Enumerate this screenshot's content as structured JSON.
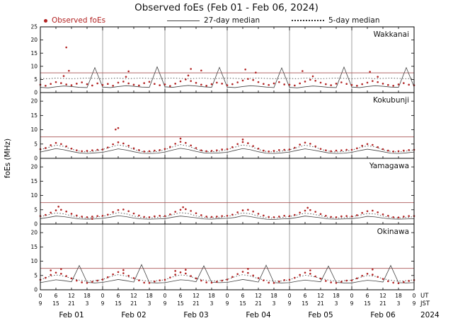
{
  "title": "Observed foEs (Feb 01 - Feb 06, 2024)",
  "ylabel": "foEs (MHz)",
  "colors": {
    "observed": "#b22222",
    "median27": "#444444",
    "median5": "#333333",
    "critical": "#aa5555",
    "grid": "#888888"
  },
  "legend": [
    {
      "label": "Observed foEs",
      "marker": "dot",
      "color": "#b22222"
    },
    {
      "label": "27-day median",
      "marker": "solid-line",
      "color": "#444444"
    },
    {
      "label": "5-day median",
      "marker": "dotted-line",
      "color": "#333333"
    }
  ],
  "x_axis": {
    "total_hours": 144,
    "tick_step_hours": 6,
    "ut_label": "UT",
    "jst_label": "JST",
    "year": "2024",
    "ut_ticks": [
      "0",
      "6",
      "12",
      "18",
      "0",
      "6",
      "12",
      "18",
      "0",
      "6",
      "12",
      "18",
      "0",
      "6",
      "12",
      "18",
      "0",
      "6",
      "12",
      "18",
      "0",
      "6",
      "12",
      "18",
      "0"
    ],
    "jst_ticks": [
      "9",
      "15",
      "21",
      "3",
      "9",
      "15",
      "21",
      "3",
      "9",
      "15",
      "21",
      "3",
      "9",
      "15",
      "21",
      "3",
      "9",
      "15",
      "21",
      "3",
      "9",
      "15",
      "21",
      "3",
      "9"
    ],
    "days": [
      "Feb 01",
      "Feb 02",
      "Feb 03",
      "Feb 04",
      "Feb 05",
      "Feb 06"
    ]
  },
  "chart_data": [
    {
      "station": "Wakkanai",
      "type": "scatter",
      "ylim": [
        0,
        25
      ],
      "yticks": [
        0,
        5,
        10,
        15,
        20,
        25
      ],
      "critical_line": 7.5,
      "observed": {
        "dt_hours": 2,
        "values": [
          3.0,
          2.6,
          3.3,
          4.0,
          3.6,
          3.1,
          2.8,
          3.4,
          3.9,
          3.2,
          2.7,
          3.5,
          2.9,
          3.3,
          2.6,
          3.8,
          4.2,
          3.5,
          3.0,
          2.7,
          3.6,
          4.1,
          3.3,
          2.8,
          3.1,
          2.5,
          3.4,
          4.3,
          5.0,
          4.4,
          3.7,
          3.0,
          2.6,
          3.2,
          3.8,
          3.4,
          2.8,
          3.2,
          3.9,
          4.6,
          5.2,
          4.8,
          4.0,
          3.3,
          2.9,
          3.5,
          4.0,
          3.1,
          3.0,
          2.7,
          3.5,
          4.2,
          4.9,
          4.5,
          3.8,
          3.2,
          2.8,
          3.4,
          3.9,
          3.3,
          2.9,
          2.6,
          3.2,
          3.8,
          4.4,
          4.0,
          3.4,
          2.9,
          2.6,
          3.1,
          3.6,
          3.0,
          2.8
        ]
      },
      "observed_extra": [
        [
          10,
          17.2
        ],
        [
          11,
          8.3
        ],
        [
          9,
          6.3
        ],
        [
          34,
          8.1
        ],
        [
          33,
          6.0
        ],
        [
          58,
          9.0
        ],
        [
          62,
          8.4
        ],
        [
          57,
          6.5
        ],
        [
          79,
          8.8
        ],
        [
          83,
          7.6
        ],
        [
          101,
          8.2
        ],
        [
          105,
          6.2
        ],
        [
          127,
          7.9
        ],
        [
          130,
          6.0
        ]
      ],
      "median27": {
        "dt_hours": 3,
        "values": [
          2.0,
          1.8,
          2.2,
          2.5,
          2.3,
          2.0,
          1.9,
          9.5,
          2.1,
          1.9,
          2.3,
          2.6,
          2.4,
          2.1,
          2.0,
          9.8,
          2.2,
          2.0,
          2.4,
          2.7,
          2.5,
          2.2,
          2.0,
          9.6,
          2.1,
          1.9,
          2.3,
          2.6,
          2.4,
          2.1,
          1.9,
          9.4,
          2.0,
          1.8,
          2.2,
          2.5,
          2.3,
          2.0,
          1.9,
          9.7,
          2.1,
          1.9,
          2.3,
          2.6,
          2.4,
          2.1,
          2.0,
          9.5,
          2.2
        ]
      },
      "median5": {
        "dt_hours": 3,
        "values": [
          5.4,
          5.3,
          5.5,
          5.4,
          5.3,
          5.4,
          5.5,
          5.4,
          5.3,
          5.4,
          5.5,
          5.3,
          5.4,
          5.5,
          5.4,
          5.3,
          5.4,
          5.5,
          5.4,
          5.3,
          5.4,
          5.5,
          5.3,
          5.4,
          5.5,
          5.4,
          5.3,
          5.4,
          5.5,
          5.4,
          5.3,
          5.4,
          5.4,
          5.3,
          5.5,
          5.4,
          5.3,
          5.4,
          5.5,
          5.4,
          5.3,
          5.4,
          5.5,
          5.3,
          5.4,
          5.5,
          5.4,
          5.3,
          5.4
        ]
      }
    },
    {
      "station": "Kokubunji",
      "type": "scatter",
      "ylim": [
        0,
        23
      ],
      "yticks": [
        0,
        5,
        10,
        15,
        20
      ],
      "critical_line": 7.5,
      "observed": {
        "dt_hours": 2,
        "values": [
          3.2,
          3.6,
          4.6,
          5.4,
          5.0,
          4.2,
          3.4,
          2.8,
          2.5,
          2.6,
          2.8,
          3.0,
          3.1,
          3.8,
          4.9,
          5.6,
          5.2,
          4.4,
          3.5,
          2.9,
          2.4,
          2.5,
          2.7,
          2.9,
          3.3,
          4.0,
          5.1,
          5.8,
          5.4,
          4.5,
          3.6,
          2.8,
          2.5,
          2.6,
          2.8,
          3.1,
          3.2,
          3.9,
          5.0,
          5.7,
          5.3,
          4.3,
          3.4,
          2.7,
          2.4,
          2.6,
          2.9,
          3.0,
          3.1,
          3.7,
          4.8,
          5.5,
          5.1,
          4.2,
          3.3,
          2.8,
          2.5,
          2.7,
          2.8,
          3.0,
          3.0,
          3.5,
          4.4,
          5.0,
          4.7,
          3.9,
          3.2,
          2.7,
          2.4,
          2.5,
          2.7,
          2.9,
          3.0
        ]
      },
      "observed_extra": [
        [
          30,
          10.6
        ],
        [
          29,
          10.1
        ],
        [
          54,
          6.9
        ],
        [
          78,
          6.6
        ]
      ],
      "median27": {
        "dt_hours": 3,
        "values": [
          2.2,
          2.8,
          3.4,
          3.0,
          2.4,
          1.9,
          1.7,
          1.9,
          2.1,
          2.7,
          3.3,
          2.9,
          2.3,
          1.8,
          1.7,
          1.8,
          2.2,
          2.9,
          3.5,
          3.1,
          2.4,
          1.9,
          1.8,
          1.9,
          2.1,
          2.8,
          3.4,
          3.0,
          2.3,
          1.8,
          1.7,
          1.9,
          2.2,
          2.8,
          3.3,
          2.9,
          2.4,
          1.9,
          1.7,
          1.8,
          2.1,
          2.7,
          3.2,
          2.8,
          2.3,
          1.8,
          1.7,
          1.9,
          2.2
        ]
      },
      "median5": {
        "dt_hours": 3,
        "values": [
          3.0,
          3.8,
          4.6,
          4.2,
          3.2,
          2.5,
          2.2,
          2.5,
          3.1,
          3.9,
          4.7,
          4.2,
          3.1,
          2.4,
          2.2,
          2.4,
          3.0,
          4.0,
          4.8,
          4.3,
          3.2,
          2.5,
          2.3,
          2.5,
          3.1,
          3.9,
          4.7,
          4.2,
          3.1,
          2.4,
          2.2,
          2.5,
          3.0,
          3.8,
          4.6,
          4.1,
          3.2,
          2.5,
          2.2,
          2.4,
          2.9,
          3.7,
          4.4,
          4.0,
          3.0,
          2.4,
          2.2,
          2.5,
          3.0
        ]
      }
    },
    {
      "station": "Yamagawa",
      "type": "scatter",
      "ylim": [
        0,
        23
      ],
      "yticks": [
        0,
        5,
        10,
        15,
        20
      ],
      "critical_line": 7.5,
      "observed": {
        "dt_hours": 2,
        "values": [
          2.8,
          3.2,
          4.0,
          4.8,
          5.0,
          4.4,
          3.6,
          3.0,
          2.6,
          2.4,
          2.6,
          2.8,
          2.9,
          3.3,
          4.2,
          4.9,
          5.1,
          4.5,
          3.7,
          3.0,
          2.5,
          2.4,
          2.7,
          2.9,
          2.8,
          3.4,
          4.3,
          5.0,
          5.2,
          4.6,
          3.8,
          3.1,
          2.6,
          2.5,
          2.6,
          2.8,
          2.9,
          3.3,
          4.1,
          4.8,
          5.0,
          4.4,
          3.6,
          3.0,
          2.5,
          2.4,
          2.6,
          2.9,
          2.8,
          3.2,
          4.0,
          4.7,
          4.9,
          4.3,
          3.5,
          2.9,
          2.5,
          2.4,
          2.7,
          2.8,
          2.7,
          3.1,
          3.9,
          4.5,
          4.7,
          4.1,
          3.4,
          2.9,
          2.4,
          2.3,
          2.6,
          2.8,
          2.8
        ]
      },
      "observed_extra": [
        [
          7,
          6.1
        ],
        [
          55,
          5.9
        ],
        [
          103,
          5.7
        ],
        [
          20,
          1.8
        ]
      ],
      "median27": {
        "dt_hours": 3,
        "values": [
          1.9,
          2.3,
          2.8,
          2.6,
          2.2,
          1.8,
          1.7,
          1.8,
          2.0,
          2.4,
          2.9,
          2.6,
          2.1,
          1.8,
          1.7,
          1.8,
          1.9,
          2.4,
          2.8,
          2.5,
          2.2,
          1.8,
          1.7,
          1.9,
          2.0,
          2.3,
          2.9,
          2.6,
          2.1,
          1.7,
          1.6,
          1.8,
          1.9,
          2.3,
          2.8,
          2.5,
          2.2,
          1.8,
          1.7,
          1.8,
          1.9,
          2.2,
          2.7,
          2.5,
          2.1,
          1.8,
          1.7,
          1.8,
          1.9
        ]
      },
      "median5": {
        "dt_hours": 3,
        "values": [
          2.6,
          3.2,
          3.9,
          3.6,
          2.9,
          2.3,
          2.1,
          2.3,
          2.7,
          3.3,
          4.0,
          3.6,
          2.8,
          2.3,
          2.1,
          2.3,
          2.6,
          3.3,
          4.0,
          3.7,
          2.9,
          2.3,
          2.2,
          2.3,
          2.7,
          3.2,
          3.9,
          3.6,
          2.8,
          2.2,
          2.1,
          2.3,
          2.6,
          3.2,
          3.8,
          3.5,
          2.9,
          2.3,
          2.1,
          2.2,
          2.5,
          3.1,
          3.7,
          3.5,
          2.8,
          2.3,
          2.1,
          2.3,
          2.6
        ]
      }
    },
    {
      "station": "Okinawa",
      "type": "scatter",
      "ylim": [
        0,
        23
      ],
      "yticks": [
        0,
        5,
        10,
        15,
        20
      ],
      "critical_line": 7.5,
      "observed": {
        "dt_hours": 2,
        "values": [
          3.5,
          4.2,
          5.2,
          6.0,
          5.6,
          4.8,
          4.0,
          3.2,
          2.6,
          2.4,
          2.8,
          3.2,
          3.6,
          4.4,
          5.4,
          6.2,
          5.8,
          4.9,
          4.1,
          3.3,
          2.5,
          2.4,
          2.9,
          3.3,
          3.5,
          4.3,
          5.3,
          6.1,
          5.7,
          4.8,
          4.0,
          3.2,
          2.6,
          2.5,
          2.8,
          3.2,
          3.6,
          4.5,
          5.5,
          6.3,
          5.9,
          5.0,
          4.1,
          3.3,
          2.5,
          2.4,
          2.9,
          3.4,
          3.5,
          4.2,
          5.2,
          6.0,
          5.6,
          4.7,
          3.9,
          3.1,
          2.6,
          2.4,
          2.8,
          3.2,
          3.3,
          4.0,
          4.9,
          5.6,
          5.3,
          4.5,
          3.8,
          3.0,
          2.5,
          2.3,
          2.7,
          3.1,
          3.4
        ]
      },
      "observed_extra": [
        [
          8,
          7.2
        ],
        [
          4,
          6.8
        ],
        [
          32,
          6.9
        ],
        [
          56,
          7.0
        ],
        [
          52,
          6.6
        ],
        [
          80,
          7.3
        ],
        [
          104,
          6.8
        ],
        [
          128,
          7.1
        ]
      ],
      "median27": {
        "dt_hours": 3,
        "values": [
          2.5,
          3.0,
          3.5,
          3.2,
          2.8,
          8.5,
          2.6,
          2.4,
          2.6,
          3.1,
          3.6,
          3.2,
          2.7,
          8.8,
          2.5,
          2.4,
          2.5,
          3.0,
          3.5,
          3.3,
          2.8,
          8.4,
          2.6,
          2.5,
          2.6,
          3.1,
          3.6,
          3.2,
          2.7,
          8.6,
          2.5,
          2.4,
          2.5,
          3.0,
          3.4,
          3.1,
          2.8,
          8.3,
          2.6,
          2.4,
          2.4,
          2.9,
          3.3,
          3.1,
          2.7,
          8.5,
          2.5,
          2.4,
          2.5
        ]
      },
      "median5": {
        "dt_hours": 3,
        "values": [
          3.5,
          4.5,
          5.2,
          4.8,
          4.0,
          3.4,
          3.0,
          3.2,
          3.6,
          4.6,
          5.3,
          4.8,
          3.9,
          3.3,
          3.0,
          3.2,
          3.5,
          4.5,
          5.2,
          4.9,
          4.0,
          3.4,
          3.1,
          3.2,
          3.6,
          4.6,
          5.3,
          4.8,
          3.9,
          3.3,
          3.0,
          3.1,
          3.5,
          4.4,
          5.1,
          4.7,
          4.0,
          3.4,
          3.0,
          3.2,
          3.4,
          4.3,
          5.0,
          4.7,
          3.9,
          3.3,
          3.0,
          3.2,
          3.5
        ]
      }
    }
  ]
}
